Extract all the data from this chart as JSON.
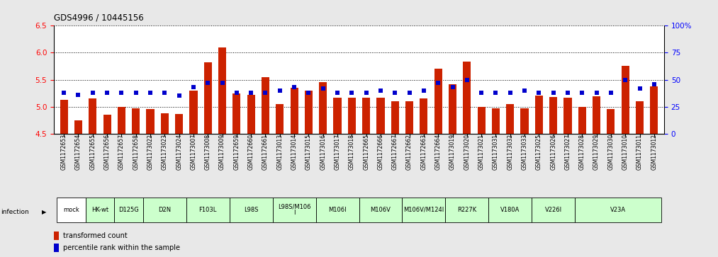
{
  "title": "GDS4996 / 10445156",
  "gsm_labels": [
    "GSM1172653",
    "GSM1172654",
    "GSM1172655",
    "GSM1172656",
    "GSM1172657",
    "GSM1172658",
    "GSM1173022",
    "GSM1173023",
    "GSM1173024",
    "GSM1173007",
    "GSM1173008",
    "GSM1173009",
    "GSM1172659",
    "GSM1172660",
    "GSM1172661",
    "GSM1173013",
    "GSM1173014",
    "GSM1173015",
    "GSM1173016",
    "GSM1173017",
    "GSM1173018",
    "GSM1172665",
    "GSM1172666",
    "GSM1172667",
    "GSM1172662",
    "GSM1172663",
    "GSM1172664",
    "GSM1173019",
    "GSM1173020",
    "GSM1173021",
    "GSM1173031",
    "GSM1173032",
    "GSM1173033",
    "GSM1173025",
    "GSM1173026",
    "GSM1173027",
    "GSM1173028",
    "GSM1173029",
    "GSM1173030",
    "GSM1173010",
    "GSM1173011",
    "GSM1173012"
  ],
  "bar_values": [
    5.13,
    4.75,
    5.15,
    4.85,
    5.0,
    4.97,
    4.95,
    4.88,
    4.87,
    5.3,
    5.82,
    6.1,
    5.25,
    5.22,
    5.55,
    5.05,
    5.35,
    5.3,
    5.45,
    5.17,
    5.17,
    5.17,
    5.17,
    5.1,
    5.1,
    5.15,
    5.7,
    5.42,
    5.83,
    5.0,
    4.97,
    5.05,
    4.97,
    5.2,
    5.18,
    5.17,
    5.0,
    5.19,
    4.95,
    5.75,
    5.1,
    5.37
  ],
  "dot_percentiles": [
    38,
    36,
    38,
    38,
    38,
    38,
    38,
    38,
    35,
    43,
    47,
    47,
    38,
    38,
    38,
    40,
    43,
    38,
    42,
    38,
    38,
    38,
    40,
    38,
    38,
    40,
    47,
    43,
    50,
    38,
    38,
    38,
    40,
    38,
    38,
    38,
    38,
    38,
    38,
    50,
    42,
    46
  ],
  "groups": [
    {
      "label": "mock",
      "start": 0,
      "end": 2,
      "color": "#ffffff"
    },
    {
      "label": "HK-wt",
      "start": 2,
      "end": 4,
      "color": "#ccffcc"
    },
    {
      "label": "D125G",
      "start": 4,
      "end": 6,
      "color": "#ccffcc"
    },
    {
      "label": "D2N",
      "start": 6,
      "end": 9,
      "color": "#ccffcc"
    },
    {
      "label": "F103L",
      "start": 9,
      "end": 12,
      "color": "#ccffcc"
    },
    {
      "label": "L98S",
      "start": 12,
      "end": 15,
      "color": "#ccffcc"
    },
    {
      "label": "L98S/M106\nI",
      "start": 15,
      "end": 18,
      "color": "#ccffcc"
    },
    {
      "label": "M106I",
      "start": 18,
      "end": 21,
      "color": "#ccffcc"
    },
    {
      "label": "M106V",
      "start": 21,
      "end": 24,
      "color": "#ccffcc"
    },
    {
      "label": "M106V/M124I",
      "start": 24,
      "end": 27,
      "color": "#ccffcc"
    },
    {
      "label": "R227K",
      "start": 27,
      "end": 30,
      "color": "#ccffcc"
    },
    {
      "label": "V180A",
      "start": 30,
      "end": 33,
      "color": "#ccffcc"
    },
    {
      "label": "V226I",
      "start": 33,
      "end": 36,
      "color": "#ccffcc"
    },
    {
      "label": "V23A",
      "start": 36,
      "end": 42,
      "color": "#ccffcc"
    }
  ],
  "ylim_left": [
    4.5,
    6.5
  ],
  "ylim_right": [
    0,
    100
  ],
  "yticks_left": [
    4.5,
    5.0,
    5.5,
    6.0,
    6.5
  ],
  "yticks_right": [
    0,
    25,
    50,
    75,
    100
  ],
  "yticklabels_right": [
    "0",
    "25",
    "50",
    "75",
    "100%"
  ],
  "bar_color": "#cc2200",
  "dot_color": "#0000cc",
  "bar_width": 0.55,
  "fig_bg_color": "#e8e8e8",
  "plot_bg_color": "#ffffff"
}
